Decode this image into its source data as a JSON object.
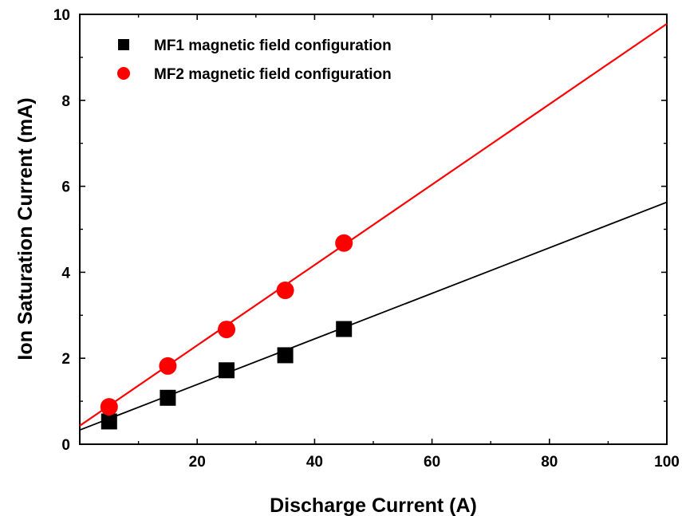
{
  "chart_data": {
    "type": "scatter",
    "title": "",
    "xlabel": "Discharge Current (A)",
    "ylabel": "Ion Saturation Current (mA)",
    "xlim": [
      0,
      100
    ],
    "ylim": [
      0,
      10
    ],
    "x_ticks": [
      20,
      40,
      60,
      80,
      100
    ],
    "y_ticks": [
      0,
      2,
      4,
      6,
      8,
      10
    ],
    "x_tick_labels": [
      "20",
      "40",
      "60",
      "80",
      "100"
    ],
    "y_tick_labels": [
      "0",
      "2",
      "4",
      "6",
      "8",
      "10"
    ],
    "grid": false,
    "legend_position": "top-left",
    "series": [
      {
        "name": "MF1 magnetic field configuration",
        "color": "#000000",
        "marker": "square",
        "x": [
          5,
          15,
          25,
          35,
          45
        ],
        "y": [
          0.53,
          1.08,
          1.72,
          2.07,
          2.68
        ],
        "fit": {
          "slope": 0.053,
          "intercept": 0.33
        }
      },
      {
        "name": "MF2 magnetic field configuration",
        "color": "#ff0000",
        "marker": "circle",
        "x": [
          5,
          15,
          25,
          35,
          45
        ],
        "y": [
          0.87,
          1.82,
          2.67,
          3.58,
          4.68
        ],
        "fit": {
          "slope": 0.0935,
          "intercept": 0.43
        }
      }
    ]
  }
}
